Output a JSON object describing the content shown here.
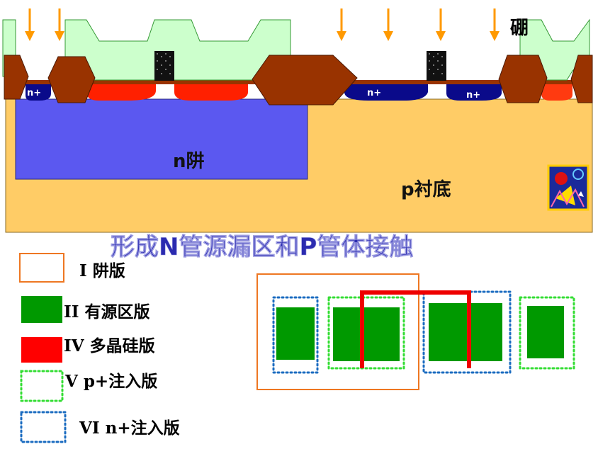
{
  "cross_section": {
    "boron_label": "硼",
    "nwell_label": "n阱",
    "substrate_label": "p衬底",
    "nplus_labels": [
      "n+",
      "n+",
      "n+"
    ]
  },
  "title": "形成N管源漏区和P管体接触",
  "legend": [
    {
      "label": "I 阱版",
      "style": "orange-outline"
    },
    {
      "label": "II 有源区版",
      "style": "green-fill"
    },
    {
      "label": "IV 多晶硅版",
      "style": "red-fill"
    },
    {
      "label": "V   p+注入版",
      "style": "green-dotted"
    },
    {
      "label": "VI   n+注入版",
      "style": "blue-dotted"
    }
  ],
  "colors": {
    "oxide": "#993300",
    "mask": "#ccffcc",
    "substrate": "#ffcc66",
    "nwell": "#5b58f0",
    "nplus": "#0a0a8a",
    "poly": "#ff2000",
    "active": "#009900",
    "arrow": "#ff9900",
    "well_mask": "#ee7722",
    "nplus_mask": "#1a6bc0",
    "pplus_mask": "#33dd33"
  }
}
